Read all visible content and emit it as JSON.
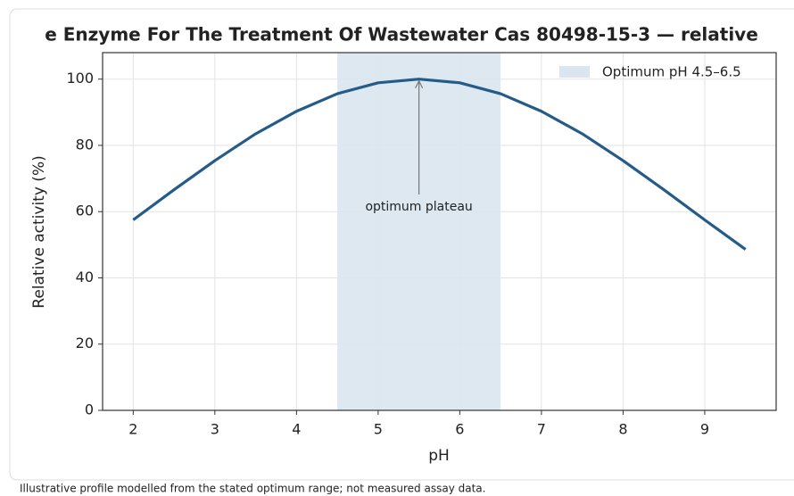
{
  "chart_data": {
    "type": "line",
    "title": "e Enzyme For The Treatment Of Wastewater Cas 80498-15-3 — relative",
    "x_label": "pH",
    "y_label": "Relative activity (%)",
    "x": [
      2,
      2.5,
      3,
      3.5,
      4,
      4.5,
      5,
      5.5,
      6,
      6.5,
      7,
      7.5,
      8,
      8.5,
      9,
      9.5
    ],
    "series": [
      {
        "name": "Relative activity",
        "color": "#245b89",
        "values": [
          57.5,
          66.6,
          75.4,
          83.5,
          90.3,
          95.6,
          98.9,
          100,
          98.9,
          95.6,
          90.3,
          83.5,
          75.4,
          66.6,
          57.5,
          48.6
        ]
      }
    ],
    "band": {
      "label": "Optimum pH 4.5–6.5",
      "range": [
        4.5,
        6.5
      ],
      "color": "#dae5f0"
    },
    "annotation": {
      "text": "optimum plateau",
      "x": 5.5,
      "y": 100
    },
    "xlim": [
      1.625,
      9.875
    ],
    "xticks": [
      2,
      3,
      4,
      5,
      6,
      7,
      8,
      9
    ],
    "ylim": [
      0,
      108
    ],
    "yticks": [
      0,
      20,
      40,
      60,
      80,
      100
    ],
    "grid": true,
    "legend": "upper right",
    "footnote": "Illustrative profile modelled from the stated optimum range; not measured assay data."
  }
}
